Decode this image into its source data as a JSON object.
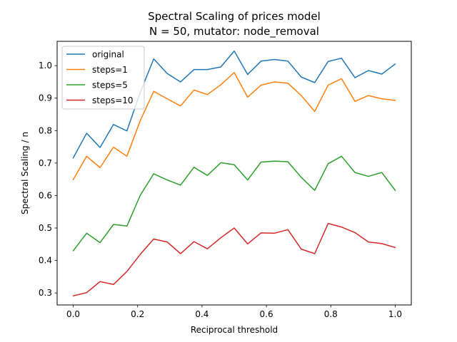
{
  "chart_data": {
    "type": "line",
    "title": "Spectral Scaling of prices model",
    "subtitle": "N = 50, mutator: node_removal",
    "xlabel": "Reciprocal threshold",
    "ylabel": "Spectral Scaling / n",
    "xlim": [
      -0.05,
      1.05
    ],
    "ylim": [
      0.263,
      1.075
    ],
    "xticks": [
      0.0,
      0.2,
      0.4,
      0.6,
      0.8,
      1.0
    ],
    "xtick_labels": [
      "0.0",
      "0.2",
      "0.4",
      "0.6",
      "0.8",
      "1.0"
    ],
    "yticks": [
      0.3,
      0.4,
      0.5,
      0.6,
      0.7,
      0.8,
      0.9,
      1.0
    ],
    "ytick_labels": [
      "0.3",
      "0.4",
      "0.5",
      "0.6",
      "0.7",
      "0.8",
      "0.9",
      "1.0"
    ],
    "grid": false,
    "legend_position": "top-left",
    "x": [
      0.0,
      0.0417,
      0.0833,
      0.125,
      0.1667,
      0.2083,
      0.25,
      0.2917,
      0.3333,
      0.375,
      0.4167,
      0.4583,
      0.5,
      0.5417,
      0.5833,
      0.625,
      0.6667,
      0.7083,
      0.75,
      0.7917,
      0.8333,
      0.875,
      0.9167,
      0.9583,
      1.0
    ],
    "series": [
      {
        "name": "original",
        "color": "#1f77b4",
        "values": [
          0.716,
          0.792,
          0.748,
          0.819,
          0.799,
          0.918,
          1.021,
          0.976,
          0.95,
          0.988,
          0.988,
          0.996,
          1.045,
          0.973,
          1.014,
          1.019,
          1.014,
          0.965,
          0.948,
          1.013,
          1.023,
          0.963,
          0.985,
          0.974,
          1.005
        ]
      },
      {
        "name": "steps=1",
        "color": "#ff7f0e",
        "values": [
          0.649,
          0.721,
          0.686,
          0.749,
          0.721,
          0.831,
          0.921,
          0.898,
          0.876,
          0.925,
          0.911,
          0.941,
          0.979,
          0.903,
          0.94,
          0.95,
          0.946,
          0.908,
          0.859,
          0.94,
          0.96,
          0.89,
          0.908,
          0.898,
          0.893
        ]
      },
      {
        "name": "steps=5",
        "color": "#2ca02c",
        "values": [
          0.43,
          0.484,
          0.455,
          0.511,
          0.506,
          0.601,
          0.667,
          0.648,
          0.632,
          0.687,
          0.662,
          0.701,
          0.695,
          0.648,
          0.703,
          0.706,
          0.704,
          0.656,
          0.616,
          0.698,
          0.721,
          0.671,
          0.659,
          0.671,
          0.616
        ]
      },
      {
        "name": "steps=10",
        "color": "#d62728",
        "values": [
          0.291,
          0.301,
          0.335,
          0.326,
          0.366,
          0.419,
          0.466,
          0.457,
          0.421,
          0.458,
          0.436,
          0.47,
          0.5,
          0.451,
          0.485,
          0.484,
          0.495,
          0.435,
          0.421,
          0.514,
          0.503,
          0.486,
          0.457,
          0.452,
          0.44
        ]
      }
    ]
  }
}
